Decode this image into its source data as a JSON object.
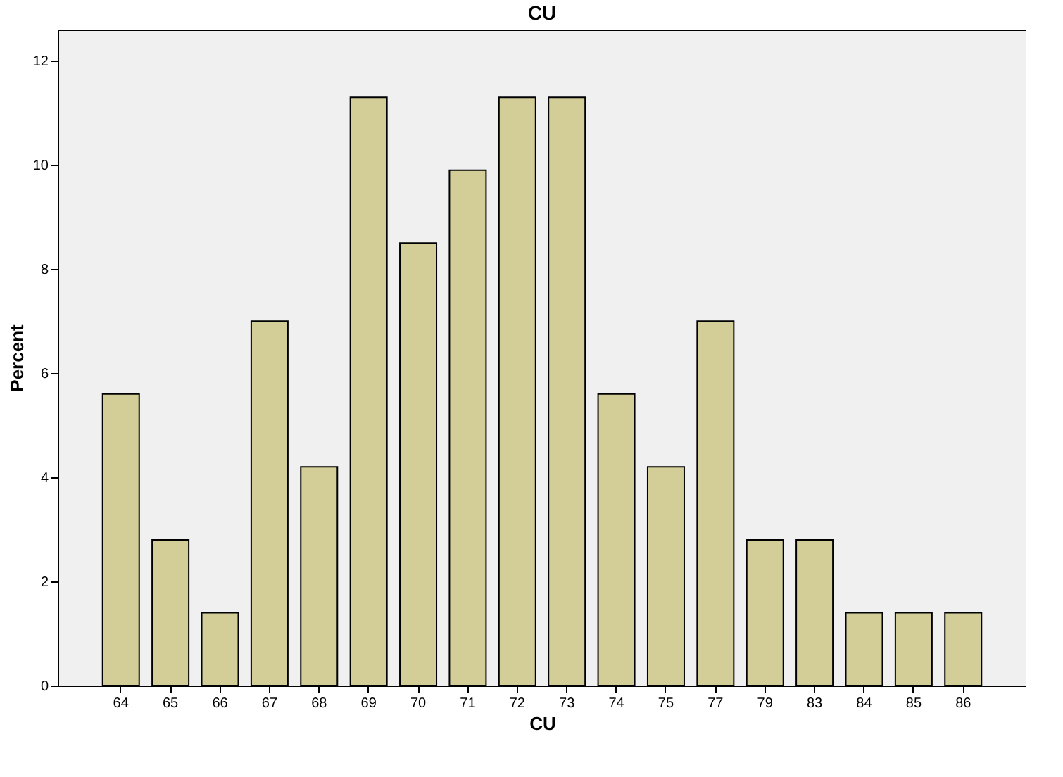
{
  "chart_data": {
    "type": "bar",
    "title": "CU",
    "xlabel": "CU",
    "ylabel": "Percent",
    "categories": [
      "64",
      "65",
      "66",
      "67",
      "68",
      "69",
      "70",
      "71",
      "72",
      "73",
      "74",
      "75",
      "77",
      "79",
      "83",
      "84",
      "85",
      "86"
    ],
    "values": [
      5.6,
      2.8,
      1.4,
      7.0,
      4.2,
      11.3,
      8.5,
      9.9,
      11.3,
      11.3,
      5.6,
      4.2,
      7.0,
      2.8,
      2.8,
      1.4,
      1.4,
      1.4
    ],
    "color": "#d3ce98",
    "ylim": [
      0,
      12.6
    ],
    "yticks": [
      0,
      2,
      4,
      6,
      8,
      10,
      12
    ],
    "grid": false
  }
}
